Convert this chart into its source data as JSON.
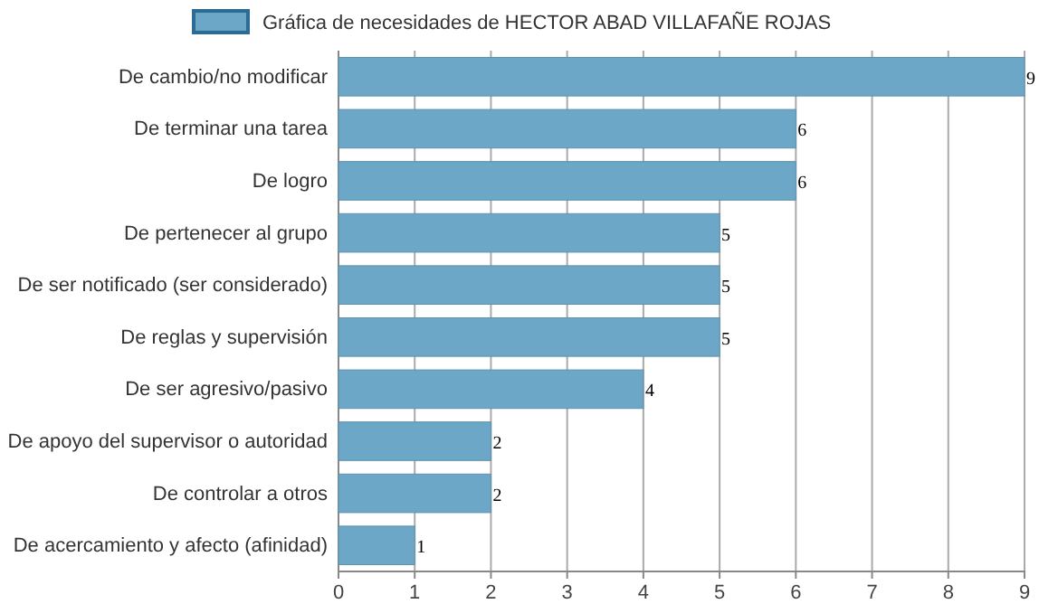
{
  "chart_data": {
    "type": "bar",
    "orientation": "horizontal",
    "categories": [
      "De cambio/no modificar",
      "De terminar una tarea",
      "De logro",
      "De pertenecer al grupo",
      "De ser notificado (ser considerado)",
      "De reglas y supervisión",
      "De ser agresivo/pasivo",
      "De apoyo del supervisor o autoridad",
      "De controlar a otros",
      "De acercamiento y afecto (afinidad)"
    ],
    "series": [
      {
        "name": "Gráfica de necesidades de HECTOR ABAD VILLAFAÑE ROJAS",
        "color": "#6ca7c8",
        "values": [
          9,
          6,
          6,
          5,
          5,
          5,
          4,
          2,
          2,
          1
        ]
      }
    ],
    "xlim": [
      0,
      9
    ],
    "xticks": [
      0,
      1,
      2,
      3,
      4,
      5,
      6,
      7,
      8,
      9
    ],
    "grid": "x",
    "legend": "top",
    "data_labels": true
  }
}
